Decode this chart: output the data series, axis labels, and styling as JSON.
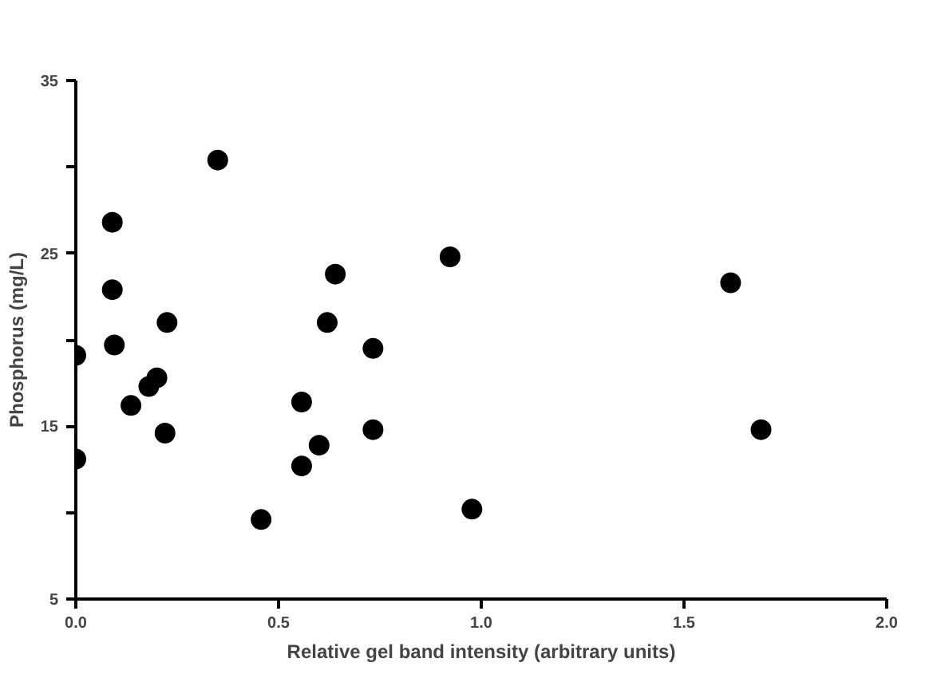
{
  "chart_data": {
    "type": "scatter",
    "xlabel": "Relative gel band intensity (arbitrary units)",
    "ylabel": "Phosphorus (mg/L)",
    "x": [
      0,
      0,
      0.09,
      0.09,
      0.095,
      0.136,
      0.18,
      0.2,
      0.22,
      0.225,
      0.35,
      0.457,
      0.557,
      0.557,
      0.6,
      0.62,
      0.64,
      0.733,
      0.733,
      0.923,
      0.977,
      1.615,
      1.69
    ],
    "series": [
      {
        "color": "#000000",
        "values": [
          19.1,
          13.1,
          26.8,
          22.9,
          19.7,
          16.2,
          17.3,
          17.8,
          14.6,
          21.0,
          30.4,
          9.6,
          16.4,
          12.7,
          13.9,
          21.0,
          23.8,
          19.5,
          14.8,
          24.8,
          10.2,
          23.3,
          14.8
        ]
      }
    ],
    "xlim": [
      0,
      2
    ],
    "xticks": [
      {
        "value": 0,
        "label": "0.0"
      },
      {
        "value": 0.5,
        "label": "0.5"
      },
      {
        "value": 1,
        "label": "1.0"
      },
      {
        "value": 1.5,
        "label": "1.5"
      },
      {
        "value": 2,
        "label": "2.0"
      }
    ],
    "ylim": [
      5,
      35
    ],
    "yticks": [
      5,
      {
        "value": 10,
        "label": null
      },
      15,
      {
        "value": 20,
        "label": null
      },
      25,
      {
        "value": 30,
        "label": null
      },
      35
    ],
    "grid": false,
    "marker": "circle"
  }
}
